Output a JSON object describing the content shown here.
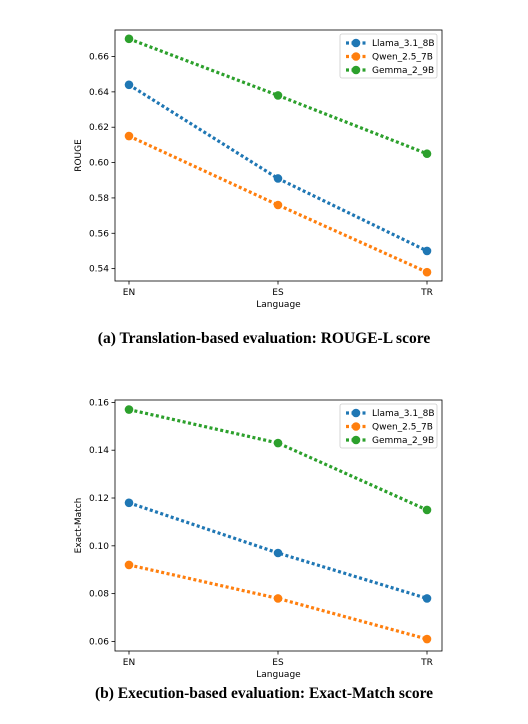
{
  "colors": {
    "llama": "#1f77b4",
    "qwen": "#ff7f0e",
    "gemma": "#2ca02c"
  },
  "chart_data": [
    {
      "type": "line",
      "caption": "(a) Translation-based evaluation: ROUGE-L score",
      "xlabel": "Language",
      "ylabel": "ROUGE",
      "categories": [
        "EN",
        "ES",
        "TR"
      ],
      "ylim": [
        0.533,
        0.675
      ],
      "yticks": [
        0.54,
        0.56,
        0.58,
        0.6,
        0.62,
        0.64,
        0.66
      ],
      "ytick_labels": [
        "0.54",
        "0.56",
        "0.58",
        "0.60",
        "0.62",
        "0.64",
        "0.66"
      ],
      "legend_position": "top-right",
      "series": [
        {
          "name": "Llama_3.1_8B",
          "color": "#1f77b4",
          "values": [
            0.644,
            0.591,
            0.55
          ]
        },
        {
          "name": "Qwen_2.5_7B",
          "color": "#ff7f0e",
          "values": [
            0.615,
            0.576,
            0.538
          ]
        },
        {
          "name": "Gemma_2_9B",
          "color": "#2ca02c",
          "values": [
            0.67,
            0.638,
            0.605
          ]
        }
      ]
    },
    {
      "type": "line",
      "caption": "(b) Execution-based evaluation: Exact-Match score",
      "xlabel": "Language",
      "ylabel": "Exact-Match",
      "categories": [
        "EN",
        "ES",
        "TR"
      ],
      "ylim": [
        0.056,
        0.161
      ],
      "yticks": [
        0.06,
        0.08,
        0.1,
        0.12,
        0.14,
        0.16
      ],
      "ytick_labels": [
        "0.06",
        "0.08",
        "0.10",
        "0.12",
        "0.14",
        "0.16"
      ],
      "legend_position": "top-right",
      "series": [
        {
          "name": "Llama_3.1_8B",
          "color": "#1f77b4",
          "values": [
            0.118,
            0.097,
            0.078
          ]
        },
        {
          "name": "Qwen_2.5_7B",
          "color": "#ff7f0e",
          "values": [
            0.092,
            0.078,
            0.061
          ]
        },
        {
          "name": "Gemma_2_9B",
          "color": "#2ca02c",
          "values": [
            0.157,
            0.143,
            0.115
          ]
        }
      ]
    }
  ]
}
